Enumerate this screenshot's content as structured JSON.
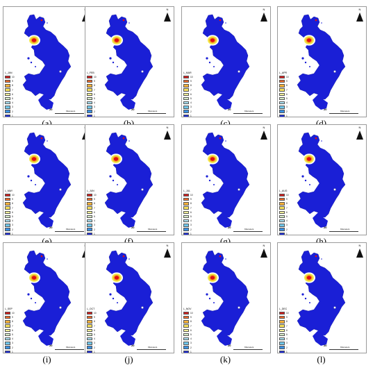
{
  "colors": {
    "land": "#1a1fd6",
    "hotspot_red": "#e01010",
    "hotspot_orange": "#f5a623",
    "hotspot_yellow": "#f3e84a",
    "hotspot_white": "#ffffff",
    "frame": "#9a9a9a"
  },
  "legend": {
    "items": [
      {
        "label": "10",
        "color": "#d81b1b"
      },
      {
        "label": "9",
        "color": "#f06a2a"
      },
      {
        "label": "8",
        "color": "#f6b13a"
      },
      {
        "label": "7",
        "color": "#f6e05a"
      },
      {
        "label": "6",
        "color": "#f3f19a"
      },
      {
        "label": "5",
        "color": "#d8ecc8"
      },
      {
        "label": "4",
        "color": "#a9dff0"
      },
      {
        "label": "3",
        "color": "#6fc6ea"
      },
      {
        "label": "2",
        "color": "#3a8fe0"
      },
      {
        "label": "1",
        "color": "#1b2ad6"
      }
    ]
  },
  "scale": {
    "number": "20",
    "unit": "Kilometers"
  },
  "north": {
    "letter": "N",
    "icon": "north-arrow-icon"
  },
  "panels": [
    {
      "caption": "(a)",
      "legend_title": "L_JAN"
    },
    {
      "caption": "(b)",
      "legend_title": "L_FEB"
    },
    {
      "caption": "(c)",
      "legend_title": "L_MAR"
    },
    {
      "caption": "(d)",
      "legend_title": "L_APR"
    },
    {
      "caption": "(e)",
      "legend_title": "L_MAY"
    },
    {
      "caption": "(f)",
      "legend_title": "L_JUN"
    },
    {
      "caption": "(g)",
      "legend_title": "L_JUL"
    },
    {
      "caption": "(h)",
      "legend_title": "L_AUG"
    },
    {
      "caption": "(i)",
      "legend_title": "L_SEP"
    },
    {
      "caption": "(j)",
      "legend_title": "L_OCT"
    },
    {
      "caption": "(k)",
      "legend_title": "L_NOV"
    },
    {
      "caption": "(l)",
      "legend_title": "L_DEC"
    }
  ]
}
